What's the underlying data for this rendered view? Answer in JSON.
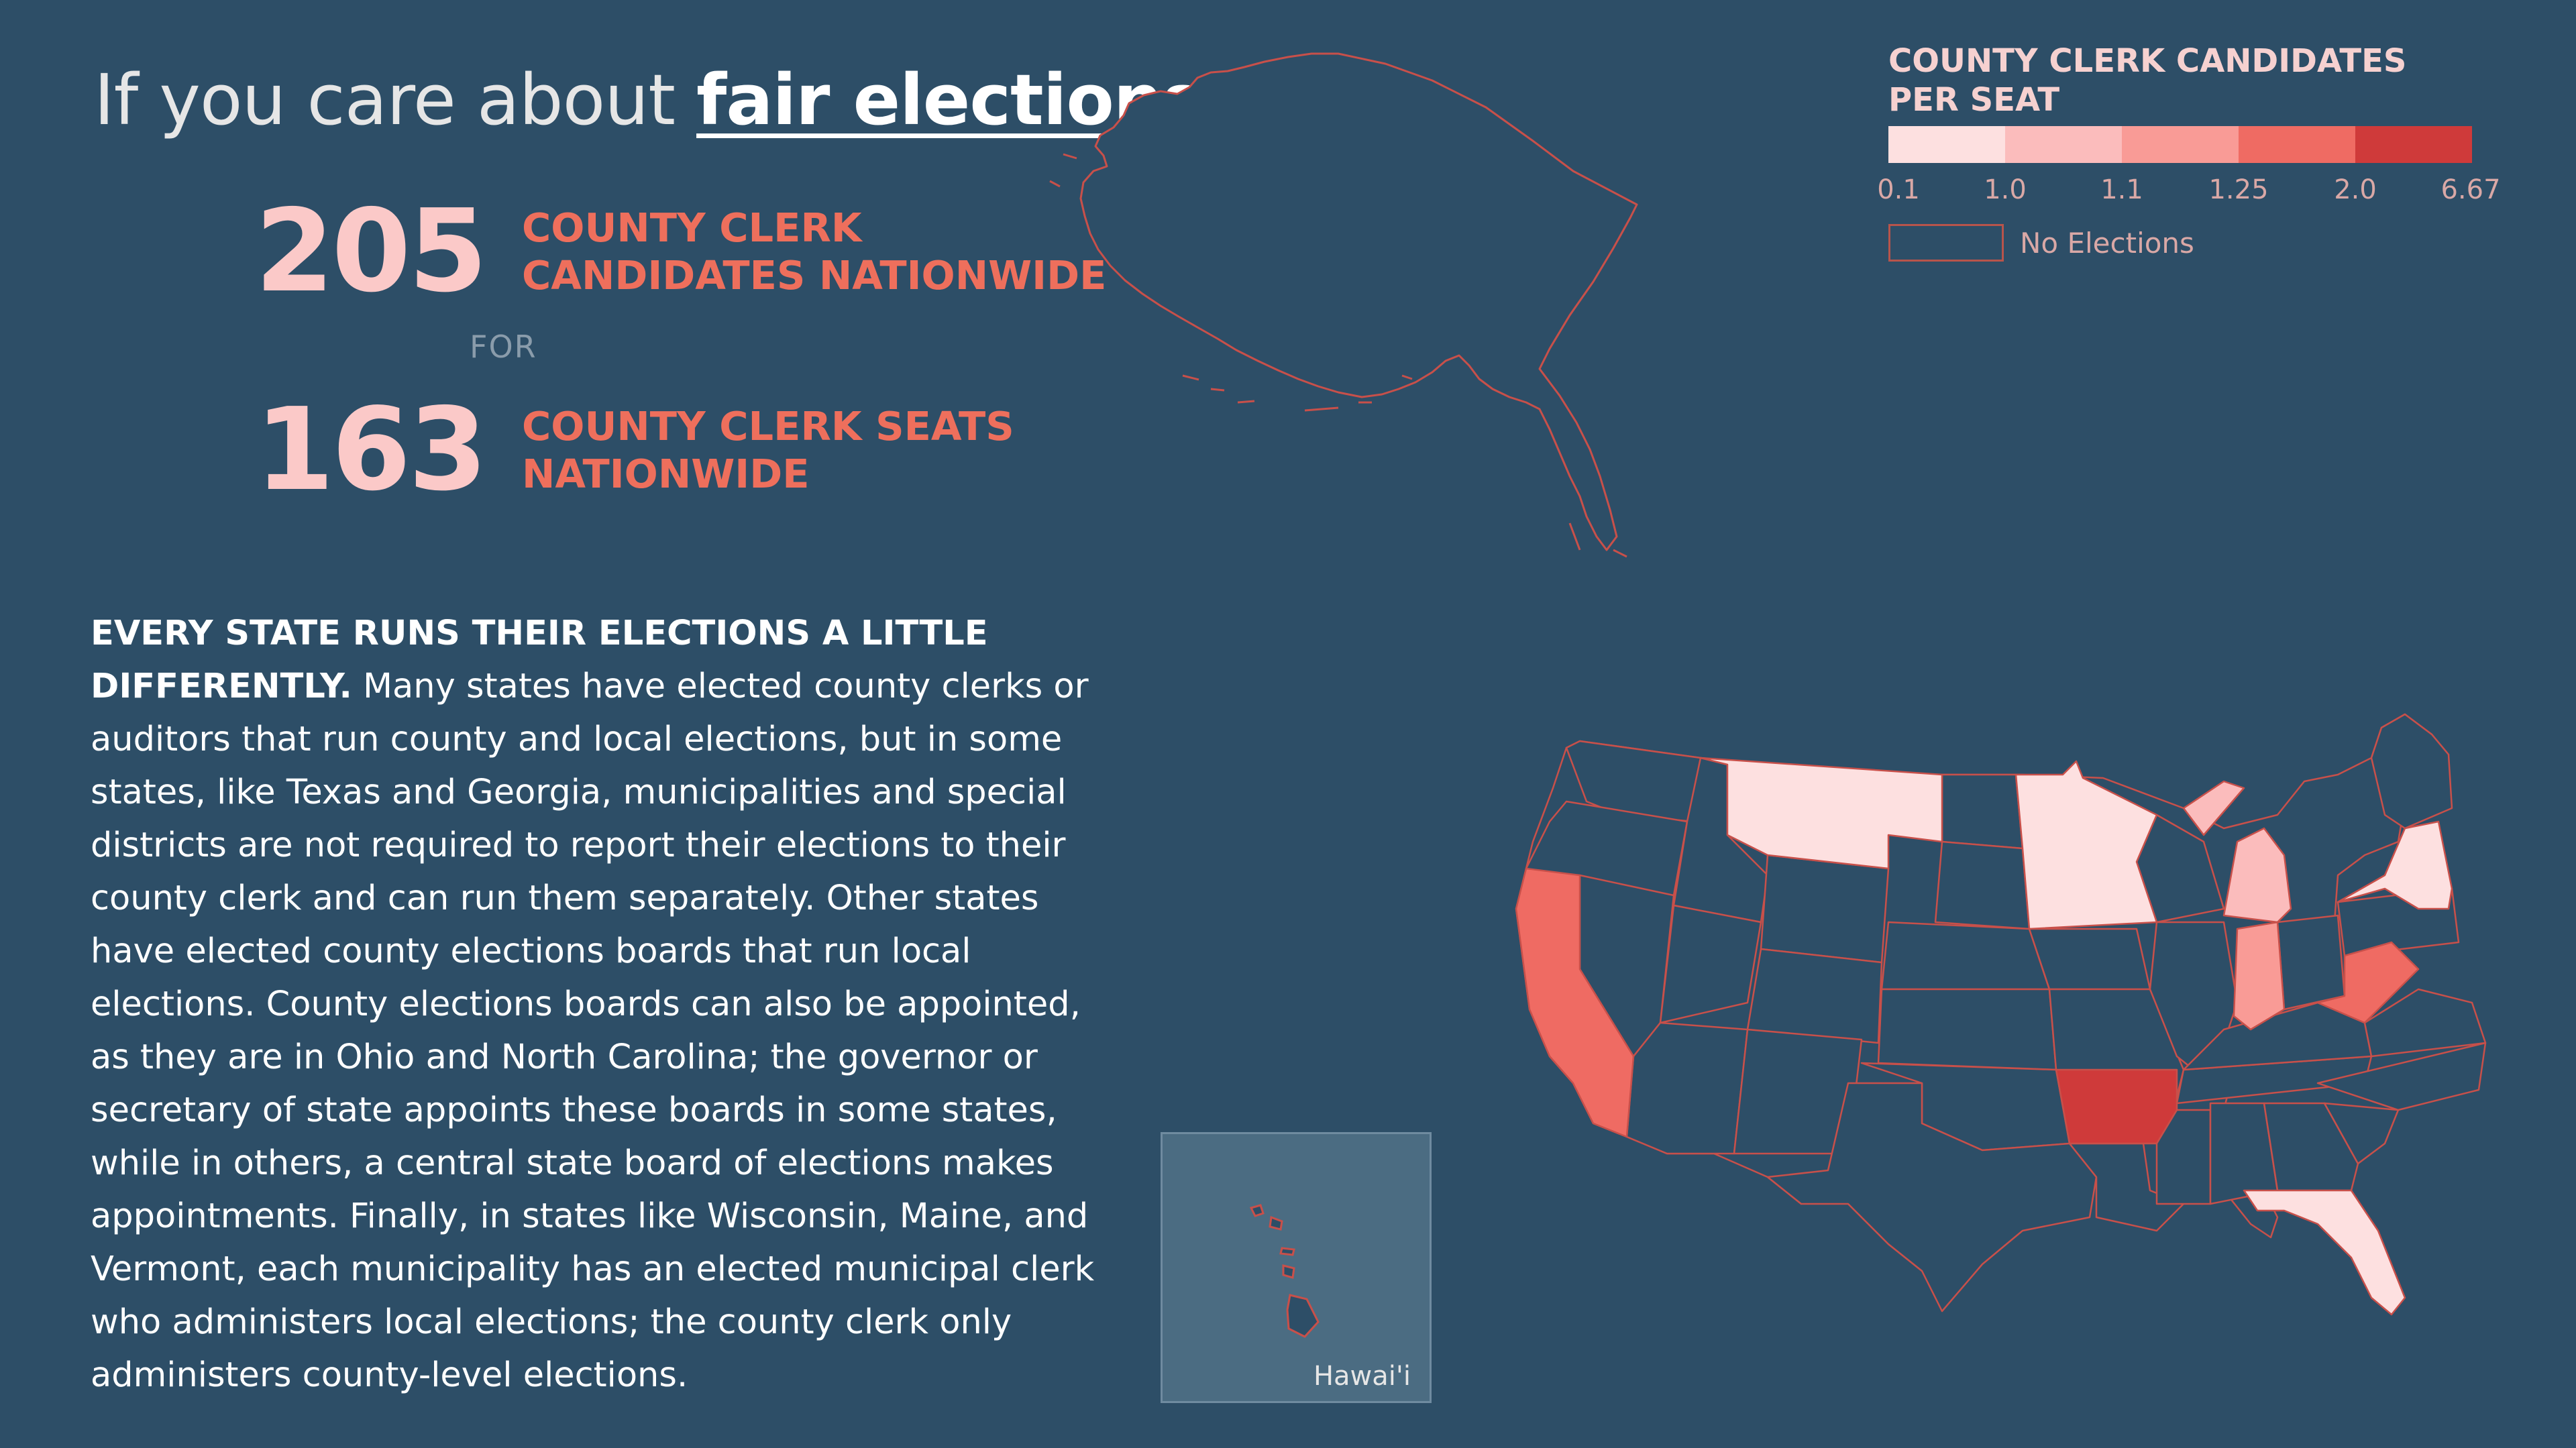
{
  "headline": {
    "prefix": "If you care about ",
    "emphasis": "fair elections:"
  },
  "stats": {
    "candidates": {
      "value": "205",
      "label_line1": "COUNTY CLERK",
      "label_line2": "CANDIDATES NATIONWIDE"
    },
    "connector": "FOR",
    "seats": {
      "value": "163",
      "label_line1": "COUNTY CLERK SEATS",
      "label_line2": "NATIONWIDE"
    }
  },
  "body": {
    "lead": "EVERY STATE RUNS THEIR ELECTIONS A LITTLE DIFFERENTLY.",
    "text": " Many states have elected county clerks or auditors that run county and local elections, but in some states, like Texas and Georgia, municipalities and special districts are not required to report their elections to their county clerk and can run them separately. Other states have elected county elections boards that run local elections. County elections boards can also be appointed, as they are in Ohio and North Carolina; the governor or secretary of state appoints these boards in some states, while in others, a central state board of elections makes appointments. Finally, in states like Wisconsin, Maine, and Vermont, each municipality has an elected municipal clerk who administers local elections; the county clerk only administers county-level elections."
  },
  "legend": {
    "title_line1": "COUNTY CLERK CANDIDATES",
    "title_line2": "PER SEAT",
    "swatches": [
      "#fde0e0",
      "#fbbcbc",
      "#f99b96",
      "#ef6b63",
      "#cf3a3a"
    ],
    "ticks": [
      "0.1",
      "1.0",
      "1.1",
      "1.25",
      "2.0",
      "6.67"
    ],
    "no_elections_label": "No Elections",
    "no_elections_color": "#2d4e67"
  },
  "map": {
    "base_color": "#2d4e67",
    "border_color": "#c8504a",
    "inset_label": "Hawai'i",
    "states_with_data": [
      {
        "state": "Montana",
        "color": "#fde0e0"
      },
      {
        "state": "Minnesota",
        "color": "#fde0e0"
      },
      {
        "state": "New York",
        "color": "#fde0e0"
      },
      {
        "state": "Florida",
        "color": "#fde0e0"
      },
      {
        "state": "Michigan",
        "color": "#fbbcbc"
      },
      {
        "state": "Indiana",
        "color": "#f99b96"
      },
      {
        "state": "California",
        "color": "#ef6b63"
      },
      {
        "state": "West Virginia",
        "color": "#ef6b63"
      },
      {
        "state": "Arkansas",
        "color": "#cf3a3a"
      }
    ]
  }
}
